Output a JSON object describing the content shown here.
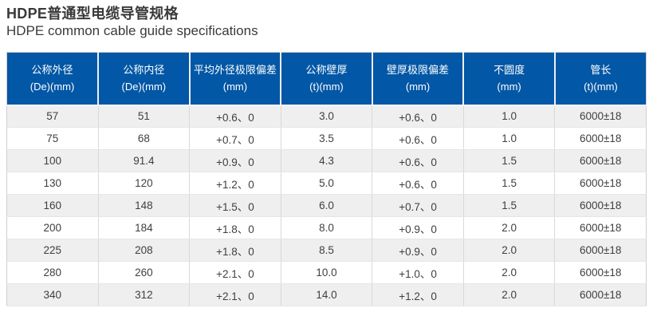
{
  "page": {
    "title_zh": "HDPE普通型电缆导管规格",
    "title_en": "HDPE common cable guide specifications"
  },
  "table": {
    "columns": [
      {
        "label": "公称外径",
        "unit": "(De)(mm)"
      },
      {
        "label": "公称内径",
        "unit": "(De)(mm)"
      },
      {
        "label": "平均外径极限偏差",
        "unit": "(mm)"
      },
      {
        "label": "公称壁厚",
        "unit": "(t)(mm)"
      },
      {
        "label": "壁厚极限偏差",
        "unit": "(mm)"
      },
      {
        "label": "不圆度",
        "unit": "(mm)"
      },
      {
        "label": "管长",
        "unit": "(t)(mm)"
      }
    ],
    "rows": [
      [
        "57",
        "51",
        "+0.6、0",
        "3.0",
        "+0.6、0",
        "1.0",
        "6000±18"
      ],
      [
        "75",
        "68",
        "+0.7、0",
        "3.5",
        "+0.6、0",
        "1.0",
        "6000±18"
      ],
      [
        "100",
        "91.4",
        "+0.9、0",
        "4.3",
        "+0.6、0",
        "1.5",
        "6000±18"
      ],
      [
        "130",
        "120",
        "+1.2、0",
        "5.0",
        "+0.6、0",
        "1.5",
        "6000±18"
      ],
      [
        "160",
        "148",
        "+1.5、0",
        "6.0",
        "+0.7、0",
        "1.5",
        "6000±18"
      ],
      [
        "200",
        "184",
        "+1.8、0",
        "8.0",
        "+0.9、0",
        "2.0",
        "6000±18"
      ],
      [
        "225",
        "208",
        "+1.8、0",
        "8.5",
        "+0.9、0",
        "2.0",
        "6000±18"
      ],
      [
        "280",
        "260",
        "+2.1、0",
        "10.0",
        "+1.0、0",
        "2.0",
        "6000±18"
      ],
      [
        "340",
        "312",
        "+2.1、0",
        "14.0",
        "+1.2、0",
        "2.0",
        "6000±18"
      ]
    ]
  },
  "colors": {
    "header_bg": "#0257a6",
    "header_text": "#ffffff",
    "row_alt_bg": "#efefef",
    "row_bg": "#ffffff",
    "border": "#d9d9d9",
    "text": "#3f3f3f"
  }
}
